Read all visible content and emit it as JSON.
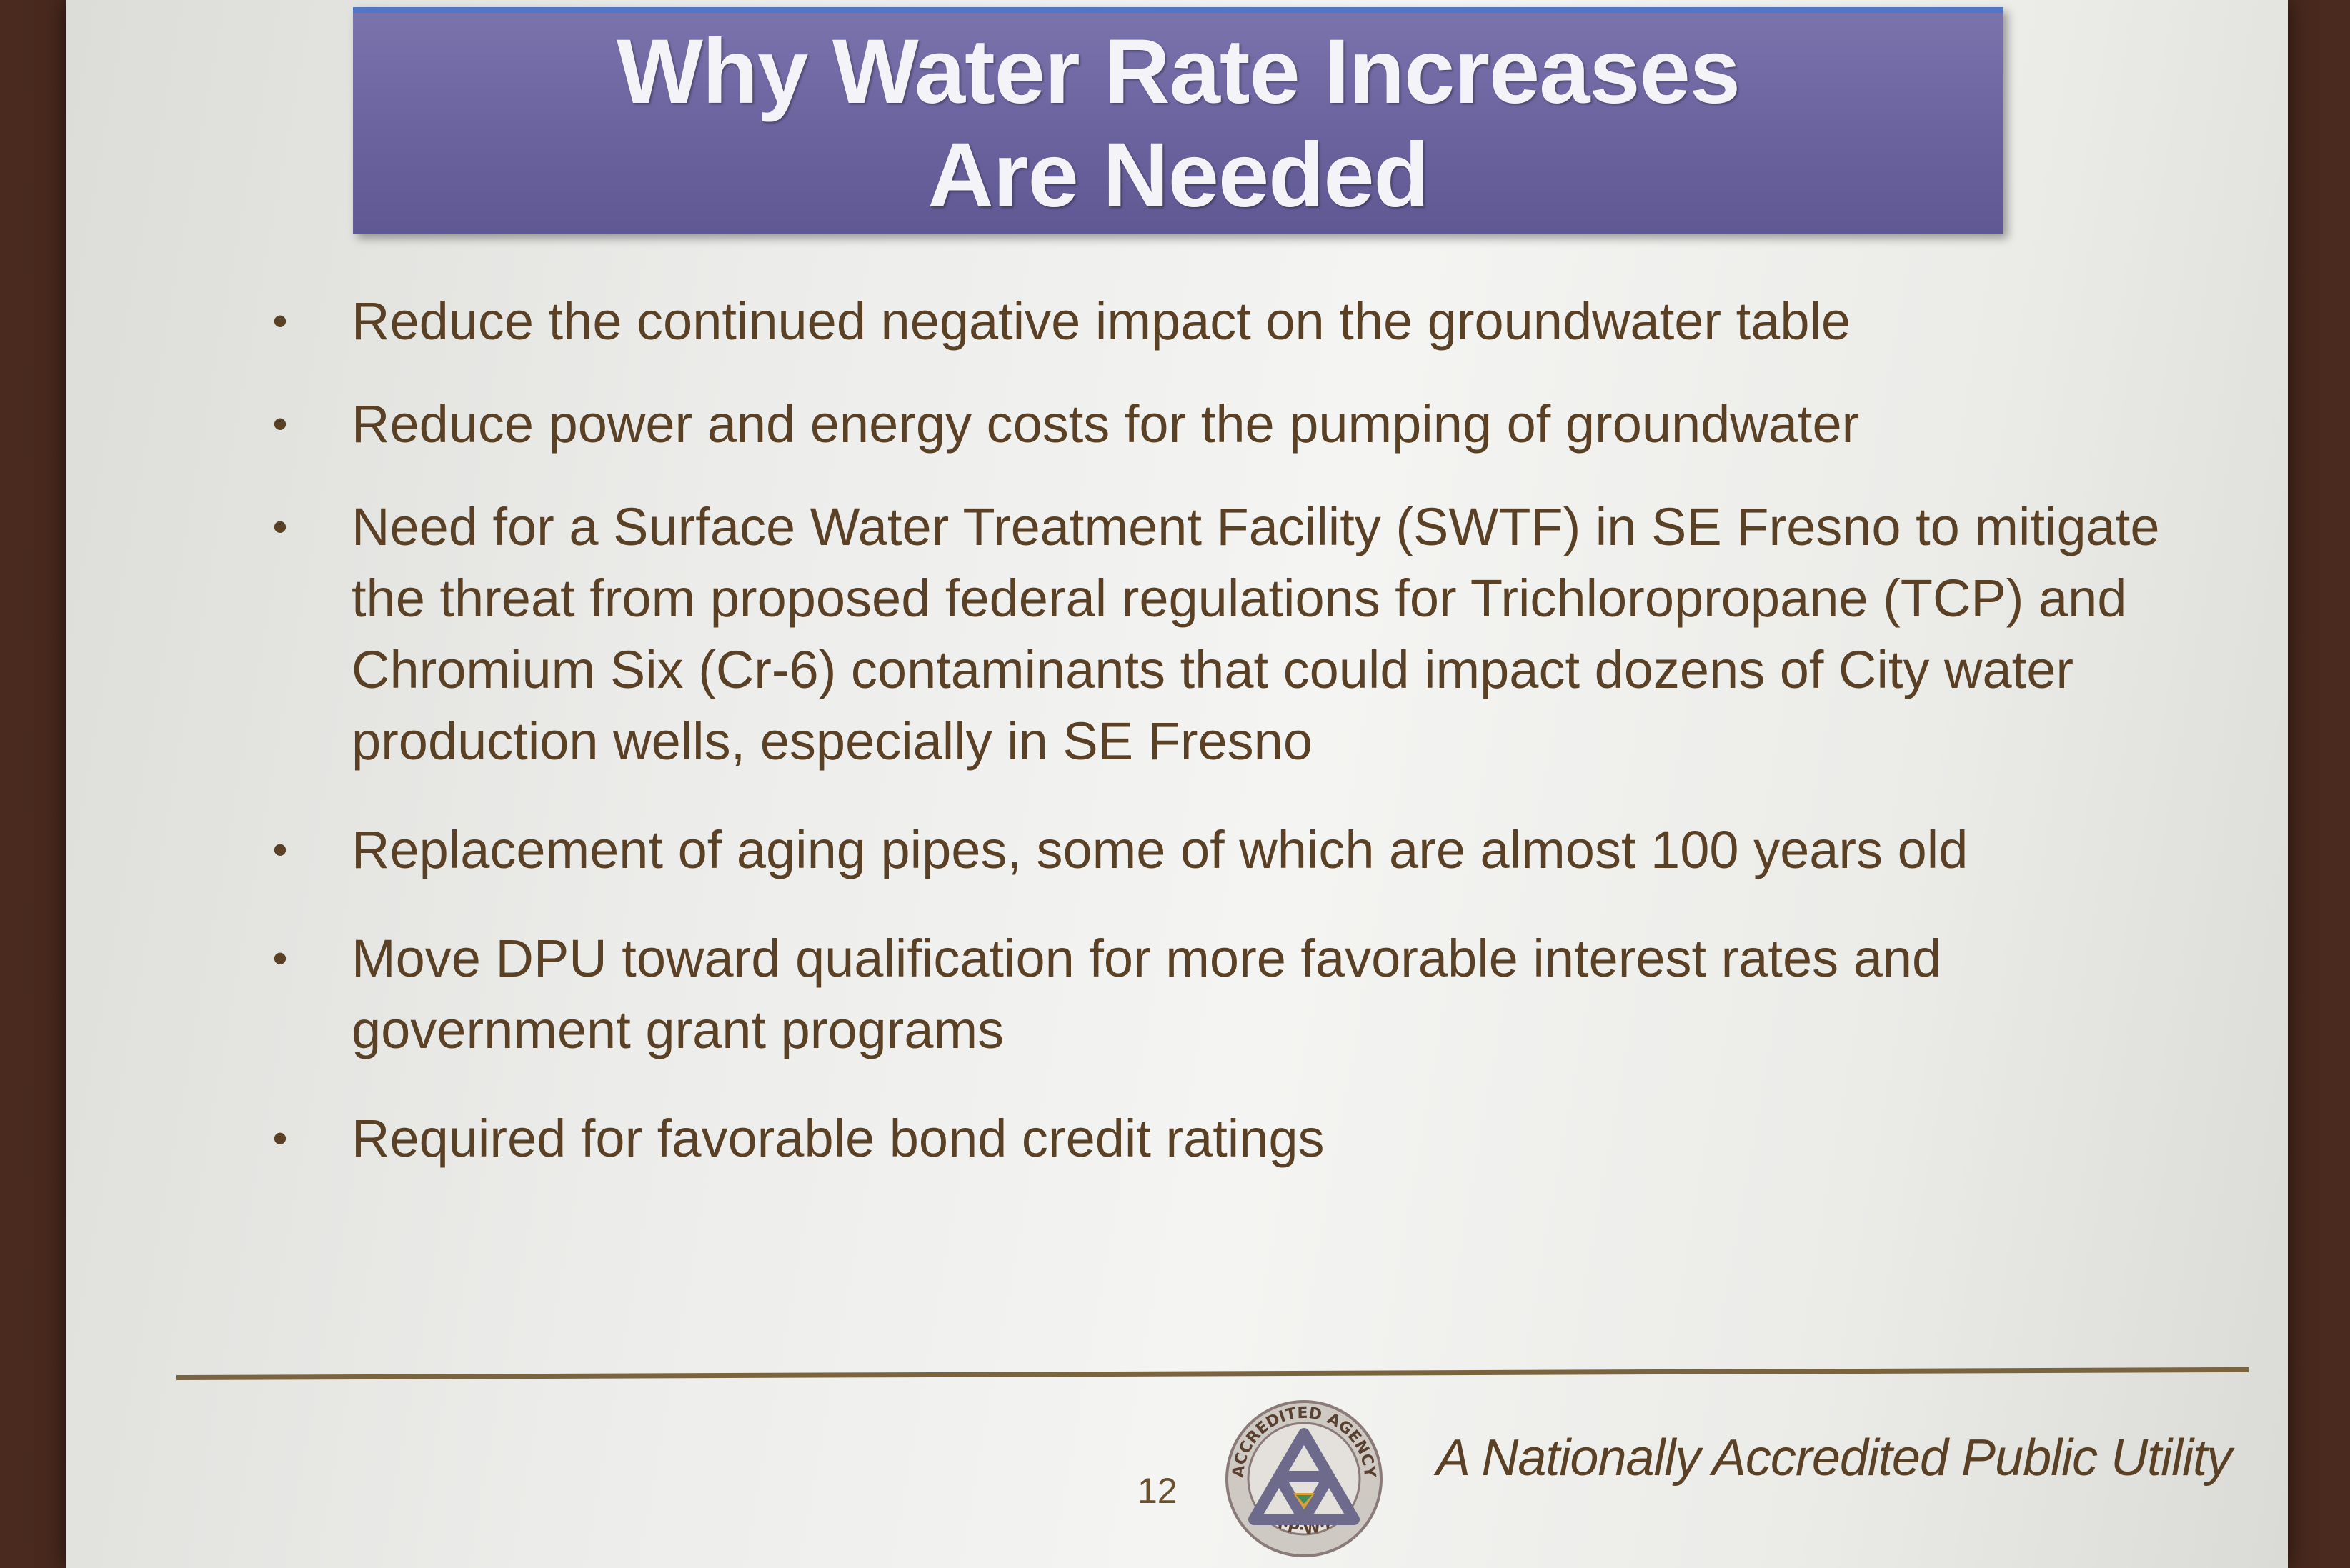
{
  "slide": {
    "title_line_1": "Why Water Rate Increases",
    "title_line_2": "Are Needed",
    "bullet_marker": "•",
    "bullets": [
      "Reduce the continued negative impact on the groundwater table",
      "Reduce power and energy costs for the pumping of groundwater",
      "Need for a Surface Water Treatment Facility (SWTF) in SE Fresno to mitigate the threat from proposed federal regulations for Trichloropropane (TCP) and Chromium Six (Cr-6)  contaminants that could impact dozens of City water production wells, especially in SE Fresno",
      "Replacement of aging pipes, some of which are almost 100 years old",
      "Move DPU toward qualification for more favorable interest rates and government grant programs",
      "Required for favorable bond credit ratings"
    ],
    "page_number": "12",
    "logo": {
      "icon": "apwa-accredited-agency-seal-icon",
      "ring_text_top": "ACCREDITED AGENCY",
      "ring_text_bottom": "A·P·W·A"
    },
    "tagline": "A Nationally Accredited Public Utility"
  },
  "colors": {
    "title_bar": "#6c649f",
    "title_text": "#f4f3f8",
    "body_text": "#5a4126",
    "rule": "#7a6440"
  }
}
